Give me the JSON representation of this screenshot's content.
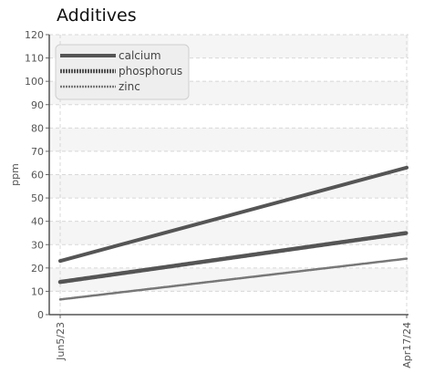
{
  "chart_data": {
    "type": "line",
    "title": "Additives",
    "xlabel": "",
    "ylabel": "ppm",
    "x": [
      "Jun5/23",
      "Apr17/24"
    ],
    "ylim": [
      0,
      120
    ],
    "yticks": [
      0,
      10,
      20,
      30,
      40,
      50,
      60,
      70,
      80,
      90,
      100,
      110,
      120
    ],
    "grid": true,
    "legend_position": "top-left",
    "series": [
      {
        "name": "calcium",
        "values": [
          23,
          63
        ],
        "color": "#555555",
        "style": "solid"
      },
      {
        "name": "phosphorus",
        "values": [
          14,
          35
        ],
        "color": "#555555",
        "style": "dotted"
      },
      {
        "name": "zinc",
        "values": [
          6.5,
          24
        ],
        "color": "#777777",
        "style": "dotted-thin"
      }
    ]
  }
}
